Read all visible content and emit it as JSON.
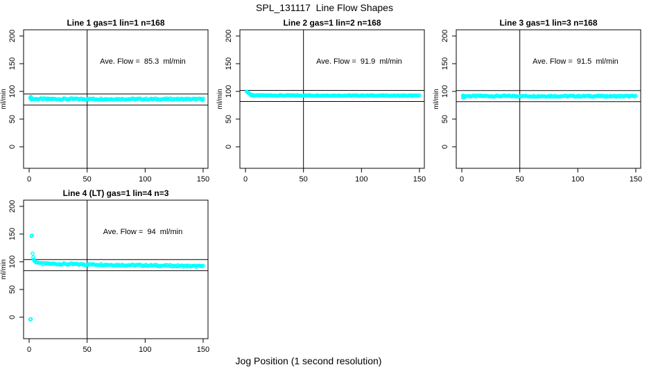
{
  "figure": {
    "main_title": "SPL_131117  Line Flow Shapes",
    "x_axis_label": "Jog Position (1 second resolution)",
    "point_color": "#00ffff",
    "axis_color": "#000000",
    "background": "#ffffff"
  },
  "chart_data": [
    {
      "type": "scatter",
      "title": "Line 1 gas=1 lin=1 n=168",
      "line": "Line 1",
      "gas": 1,
      "lin": 1,
      "n": 168,
      "ave_flow_ml_min": 85.3,
      "annotation": "Ave. Flow =  85.3  ml/min",
      "ylabel": "ml/min",
      "x_ticks": [
        0,
        50,
        100,
        150
      ],
      "y_ticks": [
        0,
        50,
        100,
        150,
        200
      ],
      "x_range": [
        -4.8,
        154.2
      ],
      "y_range": [
        -38.8,
        211.2
      ],
      "grid": false,
      "ref_line_x": 50,
      "ref_lines_y": [
        95.3,
        75.3
      ],
      "annotation_pos": [
        98,
        150
      ],
      "points": [
        [
          1,
          88.5
        ],
        [
          1.5,
          90
        ],
        [
          2,
          86.5
        ],
        [
          149.5,
          83.8
        ]
      ],
      "band": {
        "x_start": 1,
        "x_end": 150,
        "y_start": 86.3,
        "y_end": 86.0,
        "jitter": 1.3,
        "step": 1
      }
    },
    {
      "type": "scatter",
      "title": "Line 2 gas=1 lin=2 n=168",
      "line": "Line 2",
      "gas": 1,
      "lin": 2,
      "n": 168,
      "ave_flow_ml_min": 91.9,
      "annotation": "Ave. Flow =  91.9  ml/min",
      "ylabel": "ml/min",
      "x_ticks": [
        0,
        50,
        100,
        150
      ],
      "y_ticks": [
        0,
        50,
        100,
        150,
        200
      ],
      "x_range": [
        -4.8,
        154.2
      ],
      "y_range": [
        -38.8,
        211.2
      ],
      "grid": false,
      "ref_line_x": 50,
      "ref_lines_y": [
        101.9,
        81.9
      ],
      "annotation_pos": [
        98,
        150
      ],
      "points": [
        [
          1,
          100
        ],
        [
          1.5,
          99.2
        ],
        [
          2,
          98.2
        ],
        [
          2.5,
          97.2
        ],
        [
          3,
          96.3
        ],
        [
          3.5,
          95.6
        ],
        [
          4,
          95.0
        ],
        [
          4.5,
          94.5
        ],
        [
          5,
          94.1
        ],
        [
          6,
          93.5
        ],
        [
          7,
          93.1
        ]
      ],
      "band": {
        "x_start": 5,
        "x_end": 150,
        "y_start": 92.8,
        "y_end": 92.3,
        "jitter": 0.7,
        "step": 1
      }
    },
    {
      "type": "scatter",
      "title": "Line 3 gas=1 lin=3 n=168",
      "line": "Line 3",
      "gas": 1,
      "lin": 3,
      "n": 168,
      "ave_flow_ml_min": 91.5,
      "annotation": "Ave. Flow =  91.5  ml/min",
      "ylabel": "ml/min",
      "x_ticks": [
        0,
        50,
        100,
        150
      ],
      "y_ticks": [
        0,
        50,
        100,
        150,
        200
      ],
      "x_range": [
        -4.8,
        154.2
      ],
      "y_range": [
        -38.8,
        211.2
      ],
      "grid": false,
      "ref_line_x": 50,
      "ref_lines_y": [
        101.5,
        81.5
      ],
      "annotation_pos": [
        98,
        150
      ],
      "points": [
        [
          1,
          89
        ],
        [
          1.5,
          92
        ],
        [
          2,
          88.8
        ],
        [
          2.5,
          91.5
        ]
      ],
      "band": {
        "x_start": 1,
        "x_end": 150,
        "y_start": 91.6,
        "y_end": 91.3,
        "jitter": 1.2,
        "step": 1
      }
    },
    {
      "type": "scatter",
      "title": "Line 4 (LT) gas=1 lin=4 n=3",
      "line": "Line 4 (LT)",
      "gas": 1,
      "lin": 4,
      "n": 3,
      "ave_flow_ml_min": 94,
      "annotation": "Ave. Flow =  94  ml/min",
      "ylabel": "ml/min",
      "x_ticks": [
        0,
        50,
        100,
        150
      ],
      "y_ticks": [
        0,
        50,
        100,
        150,
        200
      ],
      "x_range": [
        -4.8,
        154.2
      ],
      "y_range": [
        -38.8,
        211.2
      ],
      "grid": false,
      "ref_line_x": 50,
      "ref_lines_y": [
        104,
        84
      ],
      "annotation_pos": [
        98,
        150
      ],
      "points": [
        [
          1,
          -4
        ],
        [
          1.4,
          -3.5
        ],
        [
          2,
          146.5
        ],
        [
          2.4,
          147.5
        ],
        [
          3,
          115
        ],
        [
          3.5,
          108
        ],
        [
          4,
          104
        ],
        [
          4.5,
          101.8
        ],
        [
          5,
          100.5
        ],
        [
          5.5,
          99.8
        ],
        [
          6,
          99.2
        ],
        [
          7,
          98.6
        ],
        [
          8,
          98.2
        ],
        [
          9,
          97.8
        ]
      ],
      "band": {
        "x_start": 10,
        "x_end": 150,
        "y_start": 96.6,
        "y_end": 91.8,
        "jitter": 1.4,
        "step": 1
      }
    }
  ]
}
